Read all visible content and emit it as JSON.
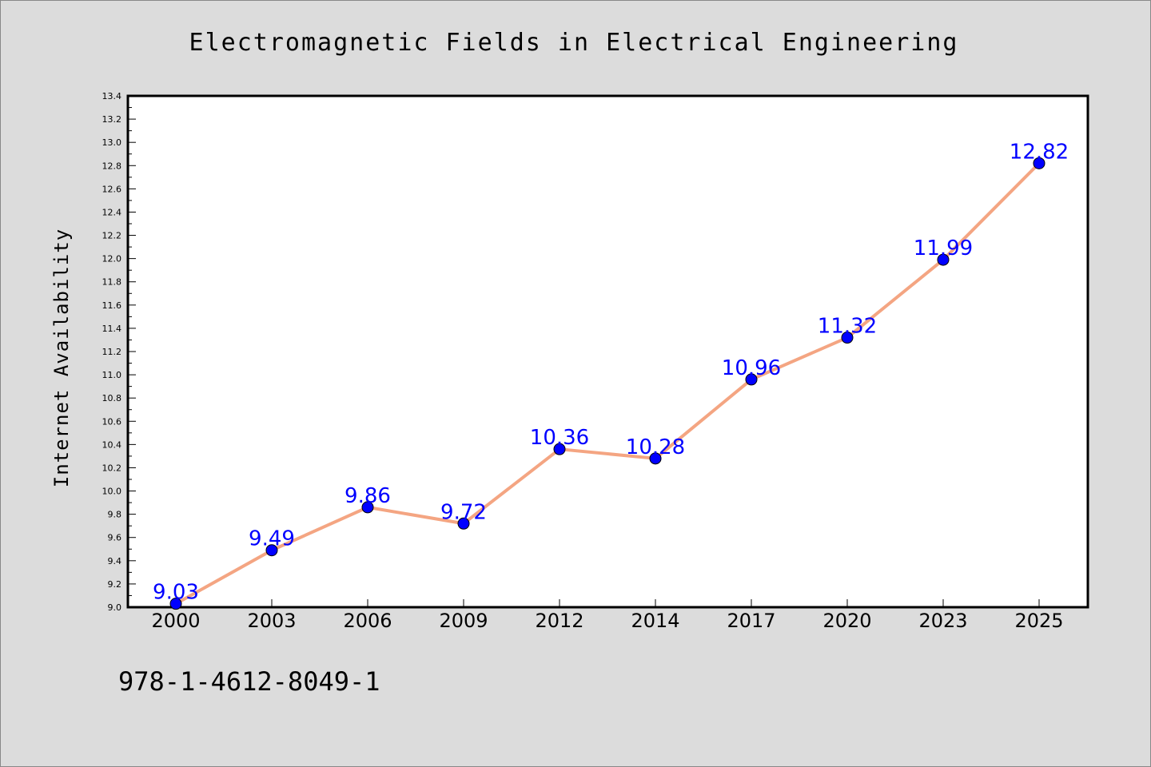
{
  "chart_data": {
    "type": "line",
    "title": "Electromagnetic Fields in Electrical Engineering",
    "xlabel": "",
    "ylabel": "Internet Availability",
    "categories": [
      "2000",
      "2003",
      "2006",
      "2009",
      "2012",
      "2014",
      "2017",
      "2020",
      "2023",
      "2025"
    ],
    "series": [
      {
        "values": [
          9.03,
          9.49,
          9.86,
          9.72,
          10.36,
          10.28,
          10.96,
          11.32,
          11.99,
          12.82
        ]
      }
    ],
    "data_labels": [
      "9.03",
      "9.49",
      "9.86",
      "9.72",
      "10.36",
      "10.28",
      "10.96",
      "11.32",
      "11.99",
      "12.82"
    ],
    "ylim": [
      9.0,
      13.4
    ],
    "yticks": [
      "9.0",
      "9.2",
      "9.4",
      "9.6",
      "9.8",
      "10.0",
      "10.2",
      "10.4",
      "10.6",
      "10.8",
      "11.0",
      "11.2",
      "11.4",
      "11.6",
      "11.8",
      "12.0",
      "12.2",
      "12.4",
      "12.6",
      "12.8",
      "13.0",
      "13.2",
      "13.4"
    ],
    "grid": false,
    "legend": "none",
    "colors": {
      "line": "#f4a582",
      "marker": "#0000ff",
      "label": "#0000ff",
      "background": "#dcdcdc",
      "plot_background": "#ffffff"
    }
  },
  "footer": {
    "isbn": "978-1-4612-8049-1"
  }
}
